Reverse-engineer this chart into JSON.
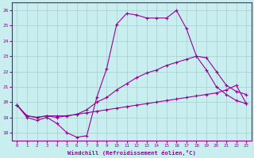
{
  "xlabel": "Windchill (Refroidissement éolien,°C)",
  "bg_color": "#c8eef0",
  "grid_color": "#aacccc",
  "line_color": "#990099",
  "xlim": [
    -0.5,
    23.5
  ],
  "ylim": [
    17.5,
    26.5
  ],
  "yticks": [
    18,
    19,
    20,
    21,
    22,
    23,
    24,
    25,
    26
  ],
  "xticks": [
    0,
    1,
    2,
    3,
    4,
    5,
    6,
    7,
    8,
    9,
    10,
    11,
    12,
    13,
    14,
    15,
    16,
    17,
    18,
    19,
    20,
    21,
    22,
    23
  ],
  "line1_x": [
    0,
    1,
    2,
    3,
    4,
    5,
    6,
    7,
    8,
    9,
    10,
    11,
    12,
    13,
    14,
    15,
    16,
    17,
    18,
    19,
    20,
    21,
    22,
    23
  ],
  "line1_y": [
    19.8,
    19.0,
    18.8,
    19.0,
    18.6,
    18.0,
    17.7,
    17.8,
    20.3,
    22.2,
    25.1,
    25.8,
    25.7,
    25.5,
    25.5,
    25.5,
    26.0,
    24.8,
    23.0,
    22.1,
    21.0,
    20.5,
    20.1,
    19.9
  ],
  "line2_x": [
    0,
    1,
    2,
    3,
    4,
    5,
    6,
    7,
    8,
    9,
    10,
    11,
    12,
    13,
    14,
    15,
    16,
    17,
    18,
    19,
    20,
    21,
    22,
    23
  ],
  "line2_y": [
    19.8,
    19.1,
    19.0,
    19.1,
    19.0,
    19.1,
    19.2,
    19.5,
    20.0,
    20.3,
    20.8,
    21.2,
    21.6,
    21.9,
    22.1,
    22.4,
    22.6,
    22.8,
    23.0,
    22.9,
    22.0,
    21.1,
    20.7,
    20.5
  ],
  "line3_x": [
    0,
    1,
    2,
    3,
    4,
    5,
    6,
    7,
    8,
    9,
    10,
    11,
    12,
    13,
    14,
    15,
    16,
    17,
    18,
    19,
    20,
    21,
    22,
    23
  ],
  "line3_y": [
    19.8,
    19.1,
    19.0,
    19.1,
    19.1,
    19.1,
    19.2,
    19.3,
    19.4,
    19.5,
    19.6,
    19.7,
    19.8,
    19.9,
    20.0,
    20.1,
    20.2,
    20.3,
    20.4,
    20.5,
    20.6,
    20.8,
    21.1,
    19.9
  ]
}
